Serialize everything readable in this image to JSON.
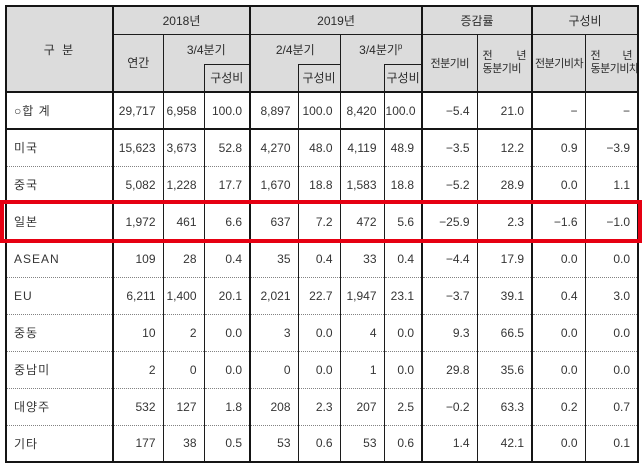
{
  "table": {
    "header_bg": "#dcdcdc",
    "highlight_color": "#e60012",
    "header": {
      "category": "구 분",
      "groups": {
        "y2018": "2018년",
        "y2019": "2019년",
        "change": "증감률",
        "share": "구성비"
      },
      "sub": {
        "annual": "연간",
        "q3_2018": "3/4분기",
        "share_2018": "구성비",
        "q2_2019": "2/4분기",
        "share_q2": "구성비",
        "q3_2019": "3/4분기",
        "q3_sup": "p",
        "share_q3": "구성비",
        "qoq": "전분기비",
        "yoy_l1a": "전",
        "yoy_l1b": "년",
        "yoy_l2": "동분기비",
        "qoq_diff": "전분기비차",
        "yoyd_l1a": "전",
        "yoyd_l1b": "년",
        "yoyd_l2": "동분기비차"
      }
    },
    "rows": [
      {
        "label": "○합 계",
        "highlight": false,
        "values": [
          "29,717",
          "6,958",
          "100.0",
          "8,897",
          "100.0",
          "8,420",
          "100.0",
          "−5.4",
          "21.0",
          "−",
          "−"
        ]
      },
      {
        "label": "미국",
        "highlight": false,
        "values": [
          "15,623",
          "3,673",
          "52.8",
          "4,270",
          "48.0",
          "4,119",
          "48.9",
          "−3.5",
          "12.2",
          "0.9",
          "−3.9"
        ]
      },
      {
        "label": "중국",
        "highlight": false,
        "values": [
          "5,082",
          "1,228",
          "17.7",
          "1,670",
          "18.8",
          "1,583",
          "18.8",
          "−5.2",
          "28.9",
          "0.0",
          "1.1"
        ]
      },
      {
        "label": "일본",
        "highlight": true,
        "values": [
          "1,972",
          "461",
          "6.6",
          "637",
          "7.2",
          "472",
          "5.6",
          "−25.9",
          "2.3",
          "−1.6",
          "−1.0"
        ]
      },
      {
        "label": "ASEAN",
        "highlight": false,
        "values": [
          "109",
          "28",
          "0.4",
          "35",
          "0.4",
          "33",
          "0.4",
          "−4.4",
          "17.9",
          "0.0",
          "0.0"
        ]
      },
      {
        "label": "EU",
        "highlight": false,
        "values": [
          "6,211",
          "1,400",
          "20.1",
          "2,021",
          "22.7",
          "1,947",
          "23.1",
          "−3.7",
          "39.1",
          "0.4",
          "3.0"
        ]
      },
      {
        "label": "중동",
        "highlight": false,
        "values": [
          "10",
          "2",
          "0.0",
          "3",
          "0.0",
          "4",
          "0.0",
          "9.3",
          "66.5",
          "0.0",
          "0.0"
        ]
      },
      {
        "label": "중남미",
        "highlight": false,
        "values": [
          "2",
          "0",
          "0.0",
          "0",
          "0.0",
          "1",
          "0.0",
          "29.8",
          "35.6",
          "0.0",
          "0.0"
        ]
      },
      {
        "label": "대양주",
        "highlight": false,
        "values": [
          "532",
          "127",
          "1.8",
          "208",
          "2.3",
          "207",
          "2.5",
          "−0.2",
          "63.3",
          "0.2",
          "0.7"
        ]
      },
      {
        "label": "기타",
        "highlight": false,
        "values": [
          "177",
          "38",
          "0.5",
          "53",
          "0.6",
          "53",
          "0.6",
          "1.4",
          "42.1",
          "0.0",
          "0.1"
        ]
      }
    ]
  }
}
